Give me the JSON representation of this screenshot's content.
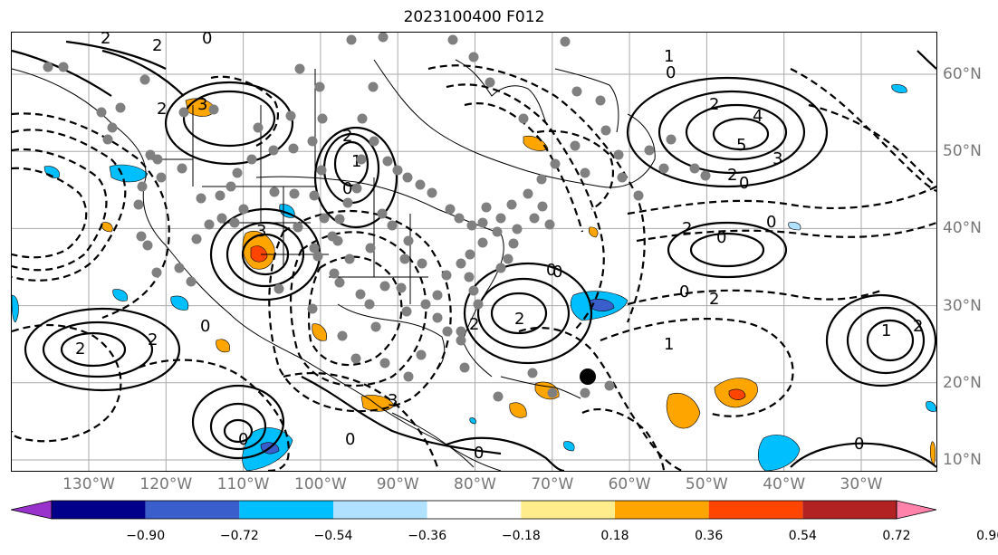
{
  "title": "2023100400 F012",
  "lon_labels": [
    {
      "text": "130°W",
      "lon": -130
    },
    {
      "text": "120°W",
      "lon": -120
    },
    {
      "text": "110°W",
      "lon": -110
    },
    {
      "text": "100°W",
      "lon": -100
    },
    {
      "text": "90°W",
      "lon": -90
    },
    {
      "text": "80°W",
      "lon": -80
    },
    {
      "text": "70°W",
      "lon": -70
    },
    {
      "text": "60°W",
      "lon": -60
    },
    {
      "text": "50°W",
      "lon": -50
    },
    {
      "text": "40°W",
      "lon": -40
    },
    {
      "text": "30°W",
      "lon": -30
    }
  ],
  "lat_labels": [
    {
      "text": "60°N",
      "lat": 60
    },
    {
      "text": "50°N",
      "lat": 50
    },
    {
      "text": "40°N",
      "lat": 40
    },
    {
      "text": "30°N",
      "lat": 30
    },
    {
      "text": "20°N",
      "lat": 20
    },
    {
      "text": "10°N",
      "lat": 10
    }
  ],
  "colorbar": {
    "ticks": [
      "−0.90",
      "−0.72",
      "−0.54",
      "−0.36",
      "−0.18",
      "0.18",
      "0.36",
      "0.54",
      "0.72",
      "0.90"
    ],
    "colors": [
      "#9932cc",
      "#00008b",
      "#3a5fcd",
      "#00bfff",
      "#b0e2ff",
      "#ffffff",
      "#ffec8b",
      "#ffa500",
      "#ff4500",
      "#b22222",
      "#ff82ab"
    ]
  },
  "contour_labels": [
    "2",
    "2",
    "0",
    "3",
    "2",
    "3",
    "2",
    "1",
    "0",
    "2",
    "5",
    "4",
    "3",
    "2",
    "0",
    "1",
    "0",
    "0",
    "2",
    "0",
    "2",
    "1",
    "2",
    "2",
    "2",
    "0",
    "0",
    "0",
    "1",
    "2",
    "0",
    "2",
    "0",
    "3",
    "0",
    "0",
    "0"
  ]
}
